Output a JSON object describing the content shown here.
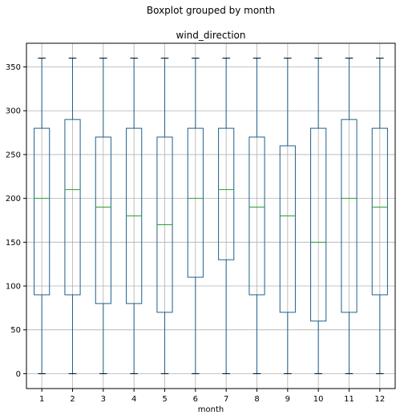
{
  "chart_data": {
    "type": "box",
    "suptitle": "Boxplot grouped by month",
    "title": "wind_direction",
    "xlabel": "month",
    "ylabel": "",
    "categories": [
      "1",
      "2",
      "3",
      "4",
      "5",
      "6",
      "7",
      "8",
      "9",
      "10",
      "11",
      "12"
    ],
    "boxes": [
      {
        "min": 0,
        "q1": 90,
        "median": 200,
        "q3": 280,
        "max": 360
      },
      {
        "min": 0,
        "q1": 90,
        "median": 210,
        "q3": 290,
        "max": 360
      },
      {
        "min": 0,
        "q1": 80,
        "median": 190,
        "q3": 270,
        "max": 360
      },
      {
        "min": 0,
        "q1": 80,
        "median": 180,
        "q3": 280,
        "max": 360
      },
      {
        "min": 0,
        "q1": 70,
        "median": 170,
        "q3": 270,
        "max": 360
      },
      {
        "min": 0,
        "q1": 110,
        "median": 200,
        "q3": 280,
        "max": 360
      },
      {
        "min": 0,
        "q1": 130,
        "median": 210,
        "q3": 280,
        "max": 360
      },
      {
        "min": 0,
        "q1": 90,
        "median": 190,
        "q3": 270,
        "max": 360
      },
      {
        "min": 0,
        "q1": 70,
        "median": 180,
        "q3": 260,
        "max": 360
      },
      {
        "min": 0,
        "q1": 60,
        "median": 150,
        "q3": 280,
        "max": 360
      },
      {
        "min": 0,
        "q1": 70,
        "median": 200,
        "q3": 290,
        "max": 360
      },
      {
        "min": 0,
        "q1": 90,
        "median": 190,
        "q3": 280,
        "max": 360
      }
    ],
    "yticks": [
      0,
      50,
      100,
      150,
      200,
      250,
      300,
      350
    ],
    "ylim": [
      -17,
      377
    ],
    "grid": true,
    "colors": {
      "box": "#1f5f8b",
      "median": "#2ca02c",
      "whisker_cap": "#000000",
      "grid": "#b0b0b0"
    }
  }
}
